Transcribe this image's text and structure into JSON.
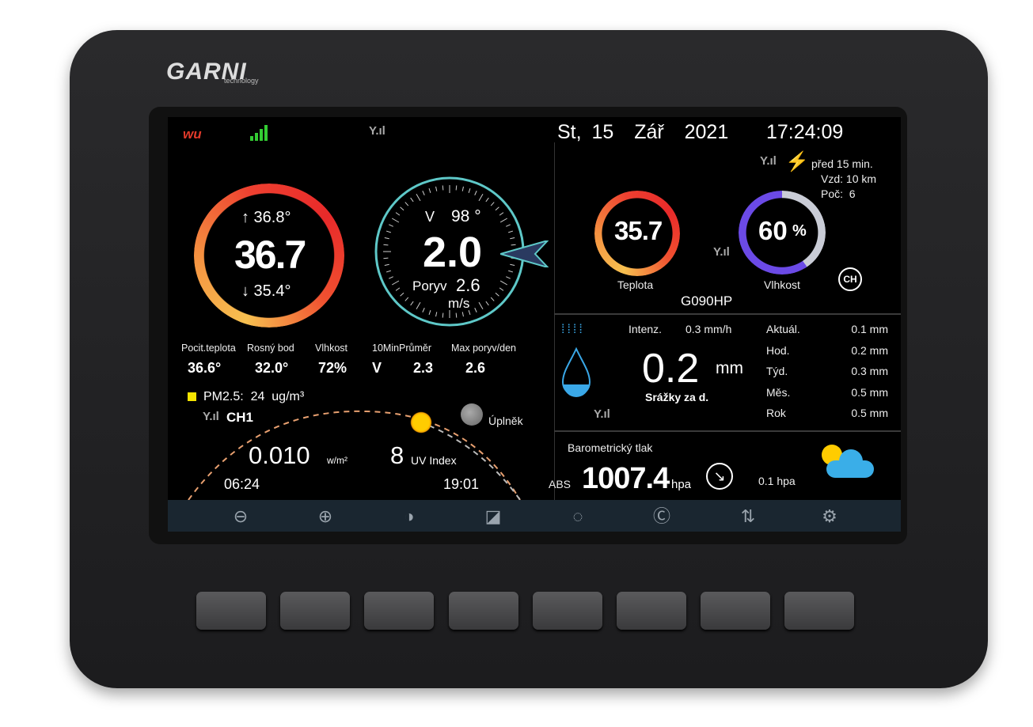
{
  "brand": {
    "name": "GARNI",
    "sub": "technology"
  },
  "status": {
    "wu": "wu",
    "date": "St, 15  Zář  2021",
    "time": "17:24:09"
  },
  "lightning": {
    "ago": "před 15 min.",
    "dist": "Vzd: 10 km",
    "count": "Poč:  6"
  },
  "outdoor": {
    "max": "↑ 36.8°",
    "temp": "36.7",
    "min": "↓ 35.4°"
  },
  "wind": {
    "dir_label": "V",
    "dir_deg": "98 °",
    "speed": "2.0",
    "gust_label": "Poryv",
    "gust": "2.6",
    "unit": "m/s"
  },
  "indoor": {
    "temp": "35.7",
    "temp_label": "Teplota",
    "humidity": "60",
    "humidity_unit": "%",
    "humidity_label": "Vlhkost",
    "humidity_pct": 60,
    "sensor": "G090HP"
  },
  "stats": [
    {
      "label": "Pocit.teplota",
      "value": "36.6°"
    },
    {
      "label": "Rosný bod",
      "value": "32.0°"
    },
    {
      "label": "Vlhkost",
      "value": "72%"
    },
    {
      "label": "10MinPrůměr",
      "value": "V",
      "value2": "2.3"
    },
    {
      "label": "Max poryv/den",
      "value": "2.6"
    }
  ],
  "pm": {
    "text": "PM2.5:  24  ug/m³",
    "color": "#f5e400",
    "channel": "CH1"
  },
  "sun": {
    "radiation": "0.010",
    "rad_unit": "w/m²",
    "uv": "8",
    "uv_label": "UV Index",
    "sunrise": "06:24",
    "sunset": "19:01"
  },
  "moon": {
    "phase": "Úplněk"
  },
  "rain": {
    "rate_label": "Intenz.",
    "rate": "0.3 mm/h",
    "daily": "0.2",
    "unit": "mm",
    "daily_label": "Srážky za d.",
    "table": [
      {
        "label": "Aktuál.",
        "value": "0.1 mm"
      },
      {
        "label": "Hod.",
        "value": "0.2 mm"
      },
      {
        "label": "Týd.",
        "value": "0.3 mm"
      },
      {
        "label": "Měs.",
        "value": "0.5 mm"
      },
      {
        "label": "Rok",
        "value": "0.5 mm"
      }
    ]
  },
  "baro": {
    "title": "Barometrický tlak",
    "mode": "ABS",
    "value": "1007.4",
    "unit": "hpa",
    "trend": "0.1 hpa"
  },
  "toolbar": [
    "zoom-out-icon",
    "zoom-in-icon",
    "contrast-icon",
    "brightness-icon",
    "gauge-icon",
    "channel-cycle-icon",
    "sort-icon",
    "settings-icon"
  ],
  "colors": {
    "compass": "#5ec8c8",
    "humidity": "#6b4ae6",
    "humidity_rest": "#c9ccd6",
    "arc": "#e8a070"
  }
}
